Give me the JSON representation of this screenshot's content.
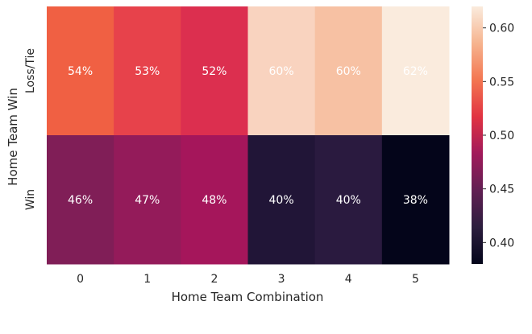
{
  "chart_data": {
    "type": "heatmap",
    "xlabel": "Home Team Combination",
    "ylabel": "Home Team Win",
    "x_categories": [
      "0",
      "1",
      "2",
      "3",
      "4",
      "5"
    ],
    "y_categories": [
      "Loss/Tie",
      "Win"
    ],
    "values": [
      [
        0.54,
        0.53,
        0.52,
        0.6,
        0.6,
        0.62
      ],
      [
        0.46,
        0.47,
        0.48,
        0.4,
        0.4,
        0.38
      ]
    ],
    "cell_labels": [
      [
        "54%",
        "53%",
        "52%",
        "60%",
        "60%",
        "62%"
      ],
      [
        "46%",
        "47%",
        "48%",
        "40%",
        "40%",
        "38%"
      ]
    ],
    "colorbar": {
      "range": [
        0.38,
        0.62
      ],
      "ticks": [
        0.4,
        0.45,
        0.5,
        0.55,
        0.6
      ],
      "tick_labels": [
        "0.40",
        "0.45",
        "0.50",
        "0.55",
        "0.60"
      ]
    },
    "colors": {
      "cells": [
        [
          "#f06043",
          "#e7424b",
          "#dc2f4f",
          "#f9d3bf",
          "#f7c1a3",
          "#faebdd"
        ],
        [
          "#801e57",
          "#941b5a",
          "#a5165b",
          "#211537",
          "#2a1a3f",
          "#04051a"
        ]
      ],
      "colorbar_stops": [
        "#03051a",
        "#2c1e3e",
        "#611f53",
        "#a11a5b",
        "#e13342",
        "#f37651",
        "#f6b48f",
        "#faebdd"
      ]
    }
  }
}
